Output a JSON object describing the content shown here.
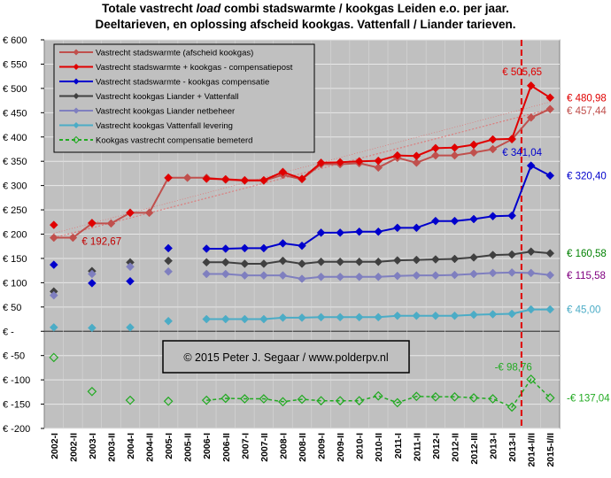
{
  "title": {
    "pre": "Totale vastrecht ",
    "em": "load",
    "post": " combi stadswarmte / kookgas Leiden e.o. per jaar.",
    "line2": "Deeltarieven, en oplossing afscheid kookgas. Vattenfall / Liander tarieven."
  },
  "copyright": "© 2015 Peter J. Segaar / www.polderpv.nl",
  "chart_data": {
    "type": "line",
    "categories": [
      "2002-I",
      "2002-II",
      "2003-I",
      "2003-II",
      "2004-I",
      "2004-II",
      "2005-I",
      "2005-II",
      "2006-I",
      "2006-II",
      "2007-I",
      "2007-II",
      "2008-I",
      "2008-II",
      "2009-I",
      "2009-II",
      "2010-I",
      "2010-II",
      "2011-I",
      "2011-II",
      "2012-I",
      "2012-II",
      "2012-III",
      "2013-I",
      "2013-II",
      "2014-I/II",
      "2015-I/II"
    ],
    "ylim": [
      -200,
      600
    ],
    "yticks": [
      -200,
      -150,
      -100,
      -50,
      0,
      50,
      100,
      150,
      200,
      250,
      300,
      350,
      400,
      450,
      500,
      550,
      600
    ],
    "ytick_labels": [
      "€ -200",
      "€ -150",
      "€ -100",
      "€ -50",
      "€ -",
      "€ 50",
      "€ 100",
      "€ 150",
      "€ 200",
      "€ 250",
      "€ 300",
      "€ 350",
      "€ 400",
      "€ 450",
      "€ 500",
      "€ 550",
      "€ 600"
    ],
    "grid": true,
    "legend_position": "top-left",
    "vertical_marker_category": "2014-I/II",
    "series": [
      {
        "name": "Vastrecht stadswarmte (afscheid kookgas)",
        "color": "#c0504d",
        "marker": "diamond",
        "dashed": false,
        "connect": true,
        "values": [
          192.67,
          192.67,
          222,
          222,
          244,
          244,
          316,
          316,
          316,
          312,
          310,
          310,
          322,
          313,
          344,
          344,
          346,
          337,
          357,
          347,
          362,
          362,
          368,
          375,
          395,
          440,
          457.44
        ]
      },
      {
        "name": "Vastrecht stadswarmte + kookgas - compensatiepost",
        "color": "#e00000",
        "marker": "diamond",
        "dashed": false,
        "connect": true,
        "values": [
          219,
          null,
          223,
          null,
          244,
          null,
          316,
          null,
          314,
          313,
          311,
          311,
          328,
          314,
          347,
          348,
          350,
          351,
          362,
          361,
          377,
          378,
          384,
          395,
          396,
          505.65,
          480.98
        ]
      },
      {
        "name": "Vastrecht stadswarmte - kookgas compensatie",
        "color": "#0000cc",
        "marker": "diamond",
        "dashed": false,
        "connect": true,
        "values": [
          137,
          null,
          99,
          null,
          103,
          null,
          171,
          null,
          170,
          170,
          171,
          171,
          181,
          176,
          203,
          203,
          205,
          205,
          213,
          213,
          227,
          227,
          231,
          237,
          238,
          341.04,
          320.4
        ]
      },
      {
        "name": "Vastrecht kookgas Liander + Vattenfall",
        "color": "#404040",
        "marker": "diamond",
        "dashed": false,
        "connect": true,
        "values": [
          82,
          null,
          124,
          null,
          142,
          null,
          145,
          null,
          142,
          142,
          139,
          139,
          145,
          139,
          143,
          143,
          143,
          143,
          146,
          147,
          148,
          149,
          152,
          157,
          158,
          164,
          160.58
        ]
      },
      {
        "name": "Vastrecht kookgas Liander netbeheer",
        "color": "#7f7fbf",
        "marker": "diamond",
        "dashed": false,
        "connect": true,
        "values": [
          74,
          null,
          118,
          null,
          133,
          null,
          123,
          null,
          118,
          118,
          115,
          115,
          115,
          108,
          112,
          112,
          112,
          112,
          114,
          115,
          115,
          116,
          118,
          120,
          121,
          120,
          115.58
        ]
      },
      {
        "name": "Vastrecht kookgas Vattenfall levering",
        "color": "#4bacc6",
        "marker": "diamond",
        "dashed": false,
        "connect": true,
        "values": [
          8,
          null,
          7,
          null,
          8,
          null,
          21,
          null,
          25,
          25,
          25,
          25,
          28,
          28,
          29,
          29,
          29,
          29,
          32,
          32,
          32,
          32,
          34,
          35,
          36,
          45,
          45.0
        ]
      },
      {
        "name": "Kookgas vastrecht compensatie bemeterd",
        "color": "#22aa22",
        "marker": "diamond-open",
        "dashed": true,
        "connect": true,
        "values": [
          -54,
          null,
          -124,
          null,
          -142,
          null,
          -144,
          null,
          -142,
          -138,
          -139,
          -139,
          -145,
          -140,
          -143,
          -143,
          -143,
          -133,
          -147,
          -134,
          -135,
          -135,
          -137,
          -139,
          -156,
          -98.76,
          -137.04
        ]
      }
    ],
    "trendline": {
      "color": "#e07070",
      "dashed": true,
      "from": 192.67,
      "to": 457.44
    },
    "annotations": [
      {
        "text": "€ 192,67",
        "category": "2002-II",
        "value": 192.67,
        "color": "#c00000",
        "side": "right"
      },
      {
        "text": "€ 505,65",
        "category": "2014-I/II",
        "value": 505.65,
        "color": "#e00000",
        "side": "above"
      },
      {
        "text": "€ 341,04",
        "category": "2014-I/II",
        "value": 341.04,
        "color": "#0000cc",
        "side": "above"
      },
      {
        "text": "€ 480,98",
        "category": "2015-I/II",
        "value": 480.98,
        "color": "#e00000",
        "side": "outside"
      },
      {
        "text": "€ 457,44",
        "category": "2015-I/II",
        "value": 457.44,
        "color": "#c0504d",
        "side": "outside"
      },
      {
        "text": "€ 320,40",
        "category": "2015-I/II",
        "value": 320.4,
        "color": "#0000cc",
        "side": "outside"
      },
      {
        "text": "€ 160,58",
        "category": "2015-I/II",
        "value": 160.58,
        "color": "#008000",
        "side": "outside"
      },
      {
        "text": "€ 115,58",
        "category": "2015-I/II",
        "value": 115.58,
        "color": "#800080",
        "side": "outside"
      },
      {
        "text": "€ 45,00",
        "category": "2015-I/II",
        "value": 45.0,
        "color": "#4bacc6",
        "side": "outside"
      },
      {
        "text": "-€ 98,76",
        "category": "2014-I/II",
        "value": -98.76,
        "color": "#22aa22",
        "side": "above"
      },
      {
        "text": "-€ 137,04",
        "category": "2015-I/II",
        "value": -137.04,
        "color": "#22aa22",
        "side": "outside"
      }
    ]
  }
}
